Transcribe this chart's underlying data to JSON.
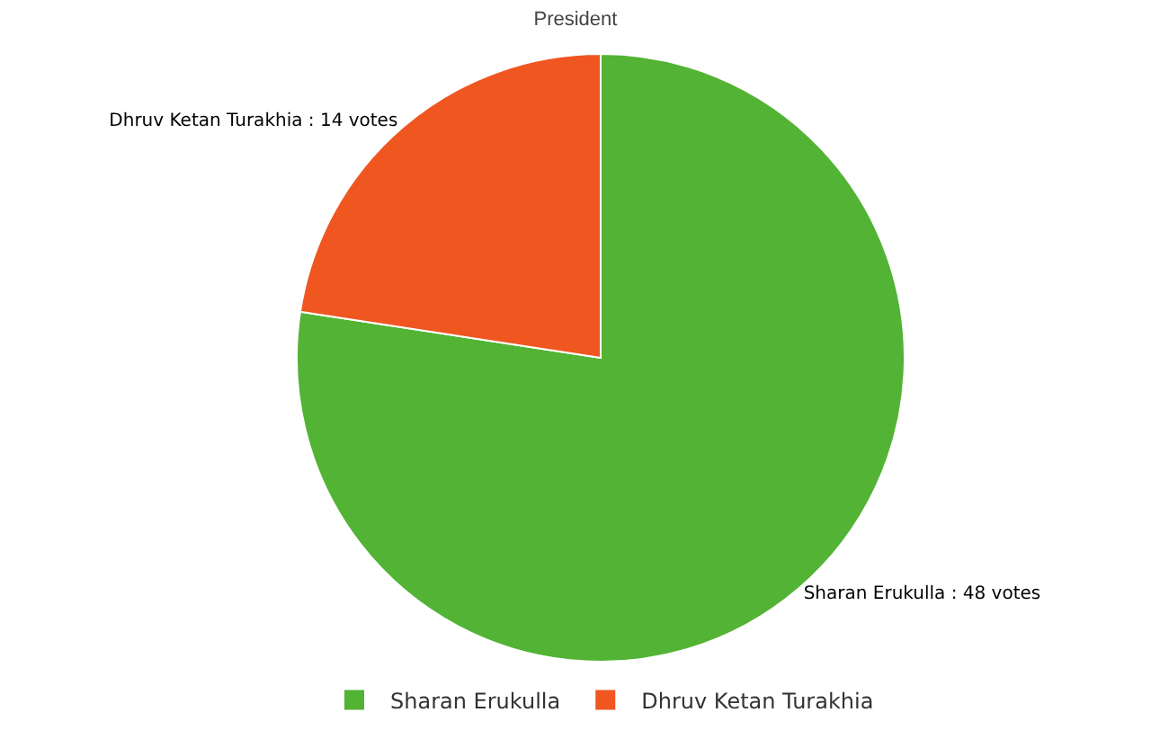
{
  "chart_data": {
    "type": "pie",
    "title": "President",
    "categories": [
      "Sharan Erukulla",
      "Dhruv Ketan Turakhia"
    ],
    "values": [
      48,
      14
    ],
    "colors": [
      "#52b334",
      "#ef5620"
    ],
    "value_labels": [
      "Sharan Erukulla : 48 votes",
      "Dhruv Ketan Turakhia : 14 votes"
    ],
    "legend": "bottom"
  }
}
